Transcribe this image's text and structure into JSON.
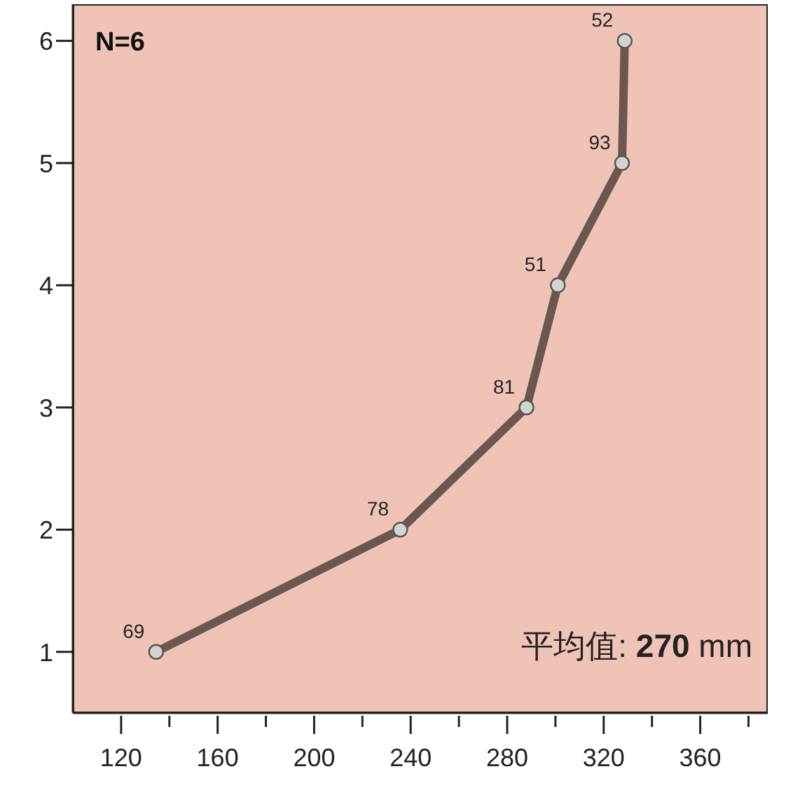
{
  "chart_data": {
    "type": "line",
    "x": [
      134.5,
      235.7,
      288,
      301,
      327.6,
      328.7
    ],
    "values": [
      1,
      2,
      3,
      4,
      5,
      6
    ],
    "color": "#6b5750",
    "marker": "circle",
    "line_style": "solid",
    "grid": false,
    "xlim": [
      100,
      388
    ],
    "xticks": [
      120,
      {
        "value": 140,
        "label": null
      },
      160,
      {
        "value": 180,
        "label": null
      },
      200,
      {
        "value": 220,
        "label": null
      },
      240,
      {
        "value": 260,
        "label": null
      },
      280,
      {
        "value": 300,
        "label": null
      },
      320,
      {
        "value": 340,
        "label": null
      },
      360,
      {
        "value": 380,
        "label": null
      }
    ],
    "ylim": [
      0.5,
      6.3
    ],
    "yticks": [
      1,
      2,
      3,
      4,
      5,
      6
    ],
    "annotations": [
      "N=6",
      "平均值: 270 mm",
      {
        "text": "69",
        "x": 134.5,
        "y": 1
      },
      {
        "text": "78",
        "x": 235.7,
        "y": 2
      },
      {
        "text": "81",
        "x": 288,
        "y": 3
      },
      {
        "text": "51",
        "x": 301,
        "y": 4
      },
      {
        "text": "93",
        "x": 327.6,
        "y": 5
      },
      {
        "text": "52",
        "x": 328.7,
        "y": 6
      }
    ]
  }
}
